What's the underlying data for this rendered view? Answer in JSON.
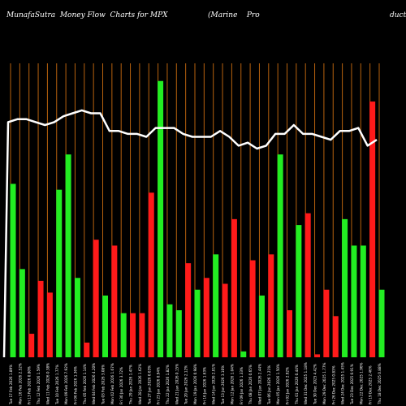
{
  "header": {
    "title_left": "MunafaSutra  Money Flow  Charts for MPX",
    "title_mid": "(Marine    Pro",
    "title_right": "ducts"
  },
  "colors": {
    "background": "#000000",
    "grid": "#b8620e",
    "up": "#22ee22",
    "down": "#ff1a1a",
    "line": "#ffffff",
    "text": "#ffffff"
  },
  "chart_data": {
    "type": "bar",
    "grid": "vertical",
    "ylim": [
      0,
      100
    ],
    "categories": [
      "Tue 17 Feb 2026",
      "Mon 16 Feb 2026",
      "Fri 13 Feb 2026",
      "Thu 12 Feb 2026",
      "Wed 11 Feb 2026",
      "Tue 10 Feb 2026",
      "Mon 09 Feb 2026",
      "Fri 06 Feb 2026",
      "Thu 05 Feb 2026",
      "Wed 04 Feb 2026",
      "Tue 03 Feb 2026",
      "Mon 02 Feb 2026",
      "Fri 30 Jan 2026",
      "Thu 29 Jan 2026",
      "Wed 28 Jan 2026",
      "Tue 27 Jan 2026",
      "Fri 23 Jan 2026",
      "Thu 22 Jan 2026",
      "Wed 21 Jan 2026",
      "Tue 20 Jan 2026",
      "Mon 19 Jan 2026",
      "Fri 16 Jan 2026",
      "Wed 14 Jan 2026",
      "Tue 13 Jan 2026",
      "Mon 12 Jan 2026",
      "Fri 09 Jan 2026",
      "Thu 08 Jan 2026",
      "Wed 07 Jan 2026",
      "Tue 06 Jan 2026",
      "Mon 05 Jan 2026",
      "Fri 02 Jan 2026",
      "Thu 01 Jan 2026",
      "Wed 31 Dec 2025",
      "Tue 30 Dec 2025",
      "Mon 29 Dec 2025",
      "Fri 26 Dec 2025",
      "Wed 24 Dec 2025",
      "Tue 23 Dec 2025",
      "Mon 22 Dec 2025",
      "Fri 19 Dec 2025",
      "Thu 18 Dec 2025"
    ],
    "tick_labels": [
      "Tue 17 Feb 2026 1.89%",
      "Mon 16 Feb 2026 2.52%",
      "Fri 13 Feb 2026 0.80%",
      "Thu 12 Feb 2026 1.59%",
      "Wed 11 Feb 2026 0.38%",
      "Tue 10 Feb 2026 1.77%",
      "Mon 09 Feb 2026 7.92%",
      "Fri 06 Feb 2026 1.36%",
      "Thu 05 Feb 2026 1.14%",
      "Wed 04 Feb 2026 4.20%",
      "Tue 03 Feb 2026 3.08%",
      "Mon 02 Feb 2026 1.67%",
      "Fri 30 Jan 2026 3.72%",
      "Thu 29 Jan 2026 1.47%",
      "Wed 28 Jan 2026 1.62%",
      "Tue 27 Jan 2026 0.63%",
      "Fri 23 Jan 2026 0.94%",
      "Thu 22 Jan 2026 1.82%",
      "Wed 21 Jan 2026 0.15%",
      "Tue 20 Jan 2026 2.12%",
      "Mon 19 Jan 2026 0.98%",
      "Fri 16 Jan 2026 1.63%",
      "Wed 14 Jan 2026 2.01%",
      "Tue 13 Jan 2026 3.10%",
      "Mon 12 Jan 2026 1.04%",
      "Fri 09 Jan 2026 1.33%",
      "Thu 08 Jan 2026 0.65%",
      "Wed 07 Jan 2026 2.44%",
      "Tue 06 Jan 2026 1.21%",
      "Mon 05 Jan 2026 1.50%",
      "Fri 02 Jan 2026 2.92%",
      "Thu 01 Jan 2026 0.44%",
      "Wed 31 Dec 2025 1.18%",
      "Tue 30 Dec 2025 4.42%",
      "Mon 29 Dec 2025 1.77%",
      "Fri 26 Dec 2025 0.83%",
      "Wed 24 Dec 2025 1.45%",
      "Tue 23 Dec 2025 0.91%",
      "Mon 22 Dec 2025 1.96%",
      "Fri 19 Dec 2025 2.46%",
      "Thu 18 Dec 2025 0.88%"
    ],
    "values": [
      59,
      30,
      8,
      26,
      22,
      57,
      69,
      27,
      5,
      40,
      21,
      38,
      15,
      15,
      15,
      56,
      94,
      18,
      16,
      32,
      23,
      27,
      35,
      25,
      47,
      2,
      33,
      21,
      35,
      69,
      16,
      45,
      49,
      1,
      23,
      14,
      47,
      38,
      38,
      87,
      23
    ],
    "directions": [
      "up",
      "up",
      "down",
      "down",
      "down",
      "up",
      "up",
      "up",
      "down",
      "down",
      "up",
      "down",
      "up",
      "down",
      "down",
      "down",
      "up",
      "up",
      "up",
      "down",
      "up",
      "down",
      "up",
      "down",
      "down",
      "up",
      "down",
      "up",
      "down",
      "up",
      "down",
      "up",
      "down",
      "down",
      "down",
      "down",
      "up",
      "up",
      "up",
      "down",
      "up"
    ],
    "series": [
      {
        "values": [
          80,
          81,
          81,
          80,
          79,
          80,
          82,
          83,
          84,
          83,
          83,
          77,
          77,
          76,
          76,
          75,
          78,
          78,
          78,
          76,
          75,
          75,
          75,
          77,
          75,
          72,
          73,
          71,
          72,
          76,
          76,
          79,
          76,
          76,
          75,
          74,
          77,
          77,
          78,
          72,
          74
        ]
      }
    ]
  }
}
